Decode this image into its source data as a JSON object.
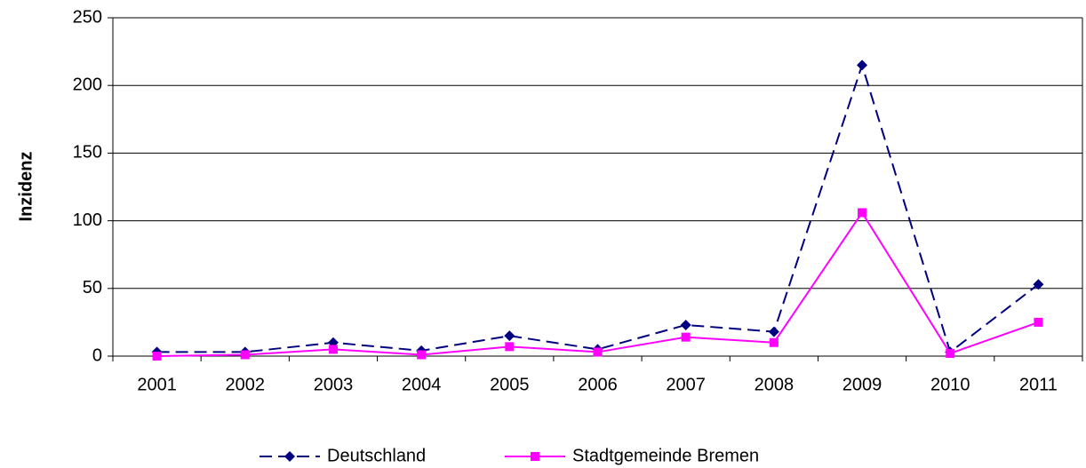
{
  "chart_data": {
    "type": "line",
    "y_label": "Inzidenz",
    "categories": [
      "2001",
      "2002",
      "2003",
      "2004",
      "2005",
      "2006",
      "2007",
      "2008",
      "2009",
      "2010",
      "2011"
    ],
    "series": [
      {
        "name": "Deutschland",
        "color": "#000080",
        "line_style": "dashed",
        "marker": "diamond",
        "values": [
          3,
          3,
          10,
          4,
          15,
          5,
          23,
          18,
          215,
          3,
          53
        ]
      },
      {
        "name": "Stadtgemeinde Bremen",
        "color": "#ff00ff",
        "line_style": "solid",
        "marker": "square",
        "values": [
          0,
          1,
          5,
          1,
          7,
          3,
          14,
          10,
          106,
          2,
          25
        ]
      }
    ],
    "ylim": [
      0,
      250
    ],
    "yticks": [
      0,
      50,
      100,
      150,
      200,
      250
    ],
    "grid": true,
    "legend": "bottom"
  }
}
